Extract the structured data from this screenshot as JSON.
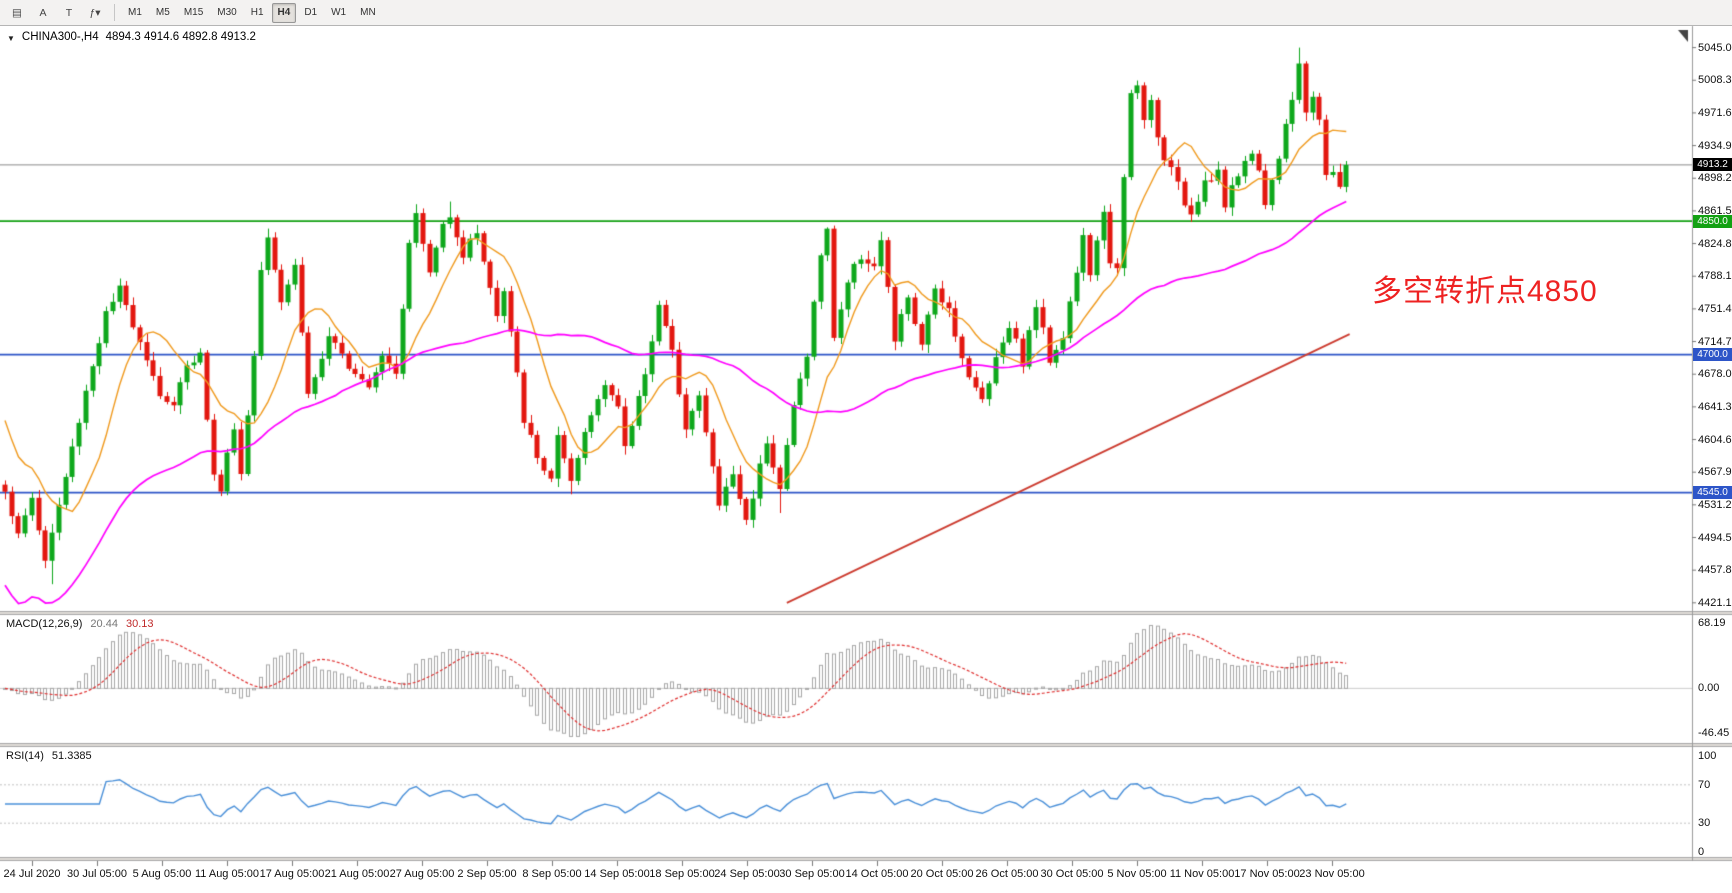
{
  "chart_header": {
    "caret": "▼",
    "symbol": "CHINA300-,H4",
    "ohlc": "4894.3 4914.6 4892.8 4913.2"
  },
  "toolbar": {
    "icons": [
      {
        "name": "charts-grid-icon",
        "glyph": "▤"
      },
      {
        "name": "cursor-a-tool",
        "glyph": "A"
      },
      {
        "name": "text-tool",
        "glyph": "T"
      },
      {
        "name": "indicators-dropdown",
        "glyph": "ƒ▾"
      }
    ],
    "timeframes": [
      "M1",
      "M5",
      "M15",
      "M30",
      "H1",
      "H4",
      "D1",
      "W1",
      "MN"
    ],
    "active_timeframe": "H4"
  },
  "annotation": {
    "text": "多空转折点4850",
    "color": "#ee2222"
  },
  "price_tags": [
    {
      "text": "4913.2",
      "price": 4913.2,
      "bg": "#000000",
      "fg": "#ffffff"
    },
    {
      "text": "4850.0",
      "price": 4850.0,
      "bg": "#13a113",
      "fg": "#ffffff"
    },
    {
      "text": "4700.0",
      "price": 4700.0,
      "bg": "#2d55c8",
      "fg": "#ffffff"
    },
    {
      "text": "4545.0",
      "price": 4545.0,
      "bg": "#2d55c8",
      "fg": "#ffffff"
    }
  ],
  "macd": {
    "label": "MACD(12,26,9)",
    "value_main": "20.44",
    "value_signal": "30.13",
    "axis_labels": [
      "68.19",
      "0.00",
      "-46.45"
    ],
    "axis_values": [
      68.19,
      0,
      -46.45
    ]
  },
  "rsi": {
    "label": "RSI(14)",
    "value": "51.3385",
    "axis_labels": [
      "100",
      "70",
      "30",
      "0"
    ],
    "axis_values": [
      100,
      70,
      30,
      0
    ],
    "levels": [
      70,
      30
    ]
  },
  "time_axis": {
    "labels": [
      "24 Jul 2020",
      "30 Jul 05:00",
      "5 Aug 05:00",
      "11 Aug 05:00",
      "17 Aug 05:00",
      "21 Aug 05:00",
      "27 Aug 05:00",
      "2 Sep 05:00",
      "8 Sep 05:00",
      "14 Sep 05:00",
      "18 Sep 05:00",
      "24 Sep 05:00",
      "30 Sep 05:00",
      "14 Oct 05:00",
      "20 Oct 05:00",
      "26 Oct 05:00",
      "30 Oct 05:00",
      "5 Nov 05:00",
      "11 Nov 05:00",
      "17 Nov 05:00",
      "23 Nov 05:00"
    ]
  },
  "colors": {
    "candle_up": "#0ea81c",
    "candle_down": "#e3170f",
    "trendline": "#cc3b2f",
    "current_price_line": "#8a8a8a",
    "macd_hist": "#a8a8a8",
    "macd_signal": "#e03131",
    "rsi_line": "#4a90d9"
  },
  "chart_data": {
    "type": "candlestick",
    "symbol": "CHINA300-",
    "timeframe": "H4",
    "ohlc_current": {
      "open": 4894.3,
      "high": 4914.6,
      "low": 4892.8,
      "close": 4913.2
    },
    "candle_count": 200,
    "y_axis": {
      "max_label": 5045.0,
      "min_label": 4421.1,
      "step": 36.7,
      "labels": [
        "5045.0",
        "5008.3",
        "4971.6",
        "4934.9",
        "4898.2",
        "4861.5",
        "4824.8",
        "4788.1",
        "4751.4",
        "4714.7",
        "4678.0",
        "4641.3",
        "4604.6",
        "4567.9",
        "4531.2",
        "4494.5",
        "4457.8",
        "4421.1"
      ]
    },
    "price_path_waypoints": [
      [
        0,
        4550
      ],
      [
        2,
        4495
      ],
      [
        4,
        4540
      ],
      [
        6,
        4468
      ],
      [
        9,
        4562
      ],
      [
        12,
        4660
      ],
      [
        15,
        4745
      ],
      [
        17,
        4772
      ],
      [
        20,
        4718
      ],
      [
        23,
        4656
      ],
      [
        25,
        4640
      ],
      [
        27,
        4692
      ],
      [
        29,
        4700
      ],
      [
        31,
        4562
      ],
      [
        32,
        4550
      ],
      [
        34,
        4622
      ],
      [
        35,
        4565
      ],
      [
        37,
        4700
      ],
      [
        38,
        4798
      ],
      [
        39,
        4838
      ],
      [
        41,
        4762
      ],
      [
        43,
        4800
      ],
      [
        45,
        4655
      ],
      [
        48,
        4716
      ],
      [
        51,
        4690
      ],
      [
        54,
        4668
      ],
      [
        56,
        4702
      ],
      [
        58,
        4682
      ],
      [
        60,
        4830
      ],
      [
        61,
        4856
      ],
      [
        63,
        4792
      ],
      [
        65,
        4846
      ],
      [
        66,
        4860
      ],
      [
        68,
        4812
      ],
      [
        70,
        4840
      ],
      [
        73,
        4742
      ],
      [
        74,
        4770
      ],
      [
        77,
        4628
      ],
      [
        79,
        4582
      ],
      [
        81,
        4562
      ],
      [
        82,
        4606
      ],
      [
        84,
        4552
      ],
      [
        86,
        4612
      ],
      [
        89,
        4672
      ],
      [
        91,
        4640
      ],
      [
        92,
        4592
      ],
      [
        95,
        4682
      ],
      [
        97,
        4756
      ],
      [
        99,
        4700
      ],
      [
        101,
        4622
      ],
      [
        103,
        4652
      ],
      [
        106,
        4532
      ],
      [
        108,
        4566
      ],
      [
        110,
        4512
      ],
      [
        113,
        4606
      ],
      [
        115,
        4550
      ],
      [
        117,
        4642
      ],
      [
        119,
        4702
      ],
      [
        121,
        4812
      ],
      [
        122,
        4838
      ],
      [
        123,
        4722
      ],
      [
        125,
        4782
      ],
      [
        127,
        4812
      ],
      [
        129,
        4800
      ],
      [
        130,
        4826
      ],
      [
        132,
        4716
      ],
      [
        134,
        4766
      ],
      [
        136,
        4706
      ],
      [
        138,
        4776
      ],
      [
        140,
        4752
      ],
      [
        143,
        4672
      ],
      [
        145,
        4650
      ],
      [
        147,
        4696
      ],
      [
        149,
        4736
      ],
      [
        151,
        4692
      ],
      [
        153,
        4756
      ],
      [
        155,
        4696
      ],
      [
        157,
        4722
      ],
      [
        160,
        4830
      ],
      [
        161,
        4792
      ],
      [
        163,
        4856
      ],
      [
        164,
        4806
      ],
      [
        165,
        4802
      ],
      [
        167,
        4990
      ],
      [
        168,
        5000
      ],
      [
        169,
        4962
      ],
      [
        170,
        4986
      ],
      [
        171,
        4942
      ],
      [
        173,
        4906
      ],
      [
        175,
        4872
      ],
      [
        176,
        4860
      ],
      [
        178,
        4896
      ],
      [
        180,
        4906
      ],
      [
        181,
        4866
      ],
      [
        183,
        4902
      ],
      [
        185,
        4932
      ],
      [
        187,
        4872
      ],
      [
        189,
        4922
      ],
      [
        191,
        4992
      ],
      [
        192,
        5030
      ],
      [
        193,
        4976
      ],
      [
        194,
        4992
      ],
      [
        195,
        4962
      ],
      [
        196,
        4896
      ],
      [
        197,
        4906
      ],
      [
        198,
        4892
      ],
      [
        199,
        4913.2
      ]
    ],
    "wick_overrides": [
      [
        7,
        null,
        4442
      ],
      [
        32,
        null,
        4541
      ],
      [
        61,
        4869,
        null
      ],
      [
        66,
        4872,
        null
      ],
      [
        84,
        null,
        4543
      ],
      [
        115,
        null,
        4522
      ],
      [
        122,
        4843,
        null
      ],
      [
        168,
        5008,
        null
      ],
      [
        176,
        null,
        4849
      ],
      [
        192,
        5045,
        null
      ]
    ],
    "overlays": {
      "hlines": [
        {
          "price": 4850.0,
          "color": "#13a113",
          "width": 1.8
        },
        {
          "price": 4700.0,
          "color": "#2d55c8",
          "width": 1.8
        },
        {
          "price": 4545.0,
          "color": "#2d55c8",
          "width": 1.8
        }
      ],
      "current_price_line": 4913.2,
      "trendline": {
        "from_idx": 116,
        "from_price": 4421,
        "to_idx": 199.5,
        "to_price": 4723,
        "color": "#cc3b2f"
      },
      "ma_fast": {
        "period": 10,
        "color": "#f09a1e"
      },
      "ma_slow": {
        "period": 50,
        "color": "#ff00ff"
      }
    },
    "indicators": [
      {
        "name": "MACD",
        "params": [
          12,
          26,
          9
        ],
        "current": [
          20.44,
          30.13
        ],
        "axis": [
          68.19,
          0,
          -46.45
        ]
      },
      {
        "name": "RSI",
        "params": [
          14
        ],
        "current": 51.3385,
        "axis": [
          100,
          70,
          30,
          0
        ]
      }
    ]
  }
}
